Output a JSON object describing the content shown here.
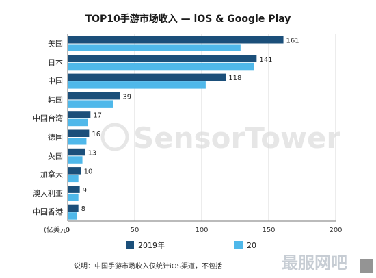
{
  "chart_data": {
    "type": "bar",
    "orientation": "horizontal",
    "title": "TOP10手游市场收入 — iOS & Google Play",
    "categories": [
      "美国",
      "日本",
      "中国",
      "韩国",
      "中国台湾",
      "德国",
      "英国",
      "加拿大",
      "澳大利亚",
      "中国香港"
    ],
    "series": [
      {
        "name": "2019年",
        "color": "#1b4f7a",
        "values": [
          161,
          141,
          118,
          39,
          17,
          16,
          13,
          10,
          9,
          8
        ]
      },
      {
        "name": "20",
        "color": "#4fb8ea",
        "values": [
          129,
          139,
          103,
          34,
          15,
          14,
          11,
          8,
          8,
          7
        ]
      }
    ],
    "xlim": [
      0,
      200
    ],
    "xticks": [
      0,
      50,
      100,
      150,
      200
    ],
    "xlabel": "(亿美元)",
    "legend_position": "bottom",
    "grid": true,
    "note": "说明：中国手游市场收入仅统计iOS渠道，不包括",
    "watermark": "SensorTower",
    "stamp": "最服网吧"
  }
}
